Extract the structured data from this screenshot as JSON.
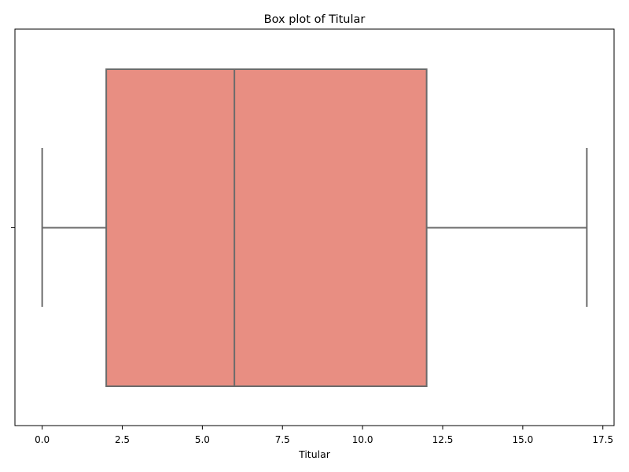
{
  "chart_data": {
    "type": "box",
    "title": "Box plot of Titular",
    "xlabel": "Titular",
    "ylabel": "",
    "orientation": "horizontal",
    "xlim": [
      -0.85,
      17.85
    ],
    "xticks": [
      0.0,
      2.5,
      5.0,
      7.5,
      10.0,
      12.5,
      15.0,
      17.5
    ],
    "xtick_labels": [
      "0.0",
      "2.5",
      "5.0",
      "7.5",
      "10.0",
      "12.5",
      "15.0",
      "17.5"
    ],
    "series": [
      {
        "name": "Titular",
        "whisker_low": 0,
        "q1": 2,
        "median": 6,
        "q3": 12,
        "whisker_high": 17
      }
    ],
    "grid": false,
    "colors": {
      "box_fill": "#E88E82",
      "line": "#6B6B6B",
      "axes": "#000000"
    }
  }
}
